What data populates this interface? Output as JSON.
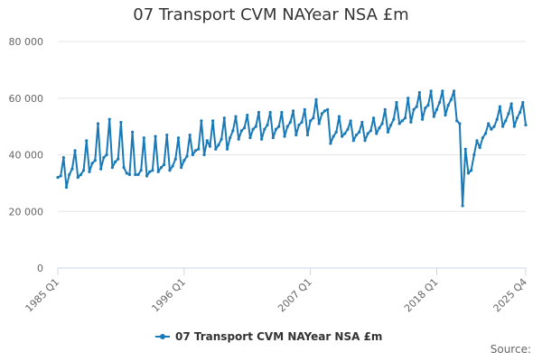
{
  "chart_data": {
    "type": "line",
    "title": "07 Transport CVM NAYear NSA £m",
    "source_label": "Source:",
    "legend_label": "07 Transport CVM NAYear NSA £m",
    "series_color": "#1a7ab8",
    "grid": true,
    "legend_position": "bottom-center",
    "ylim": [
      0,
      80000
    ],
    "yticks": [
      {
        "value": 0,
        "label": "0"
      },
      {
        "value": 20000,
        "label": "20 000"
      },
      {
        "value": 40000,
        "label": "40 000"
      },
      {
        "value": 60000,
        "label": "60 000"
      },
      {
        "value": 80000,
        "label": "80 000"
      }
    ],
    "xticks": [
      {
        "label": "1985 Q1",
        "year": 1985,
        "quarter": 1
      },
      {
        "label": "1996 Q1",
        "year": 1996,
        "quarter": 1
      },
      {
        "label": "2007 Q1",
        "year": 2007,
        "quarter": 1
      },
      {
        "label": "2018 Q1",
        "year": 2018,
        "quarter": 1
      },
      {
        "label": "2025 Q4",
        "year": 2025,
        "quarter": 4
      }
    ],
    "start": {
      "year": 1985,
      "quarter": 1
    },
    "values": [
      32000,
      32500,
      39000,
      28500,
      33000,
      35000,
      41500,
      32000,
      33000,
      34500,
      45000,
      34000,
      37000,
      38000,
      51000,
      35000,
      39000,
      40000,
      52500,
      35500,
      37500,
      38500,
      51500,
      35500,
      33500,
      33000,
      48000,
      33000,
      33000,
      34500,
      46000,
      32500,
      34000,
      34500,
      46500,
      34000,
      35500,
      36500,
      47000,
      34500,
      36000,
      38500,
      46000,
      35500,
      38000,
      39500,
      47000,
      40000,
      41500,
      42000,
      52000,
      40000,
      45000,
      43000,
      52000,
      42000,
      43500,
      45500,
      53000,
      42000,
      46000,
      48500,
      53500,
      45500,
      48500,
      49500,
      54000,
      46000,
      49000,
      50000,
      55000,
      45500,
      49000,
      50500,
      55000,
      46000,
      49000,
      50000,
      55000,
      46500,
      50000,
      51500,
      55500,
      47000,
      50500,
      51500,
      56000,
      47000,
      52000,
      53000,
      59500,
      51000,
      54500,
      55500,
      56000,
      44000,
      46500,
      48000,
      53500,
      46500,
      47500,
      49000,
      52000,
      45000,
      47000,
      48000,
      51500,
      45000,
      47500,
      48500,
      53000,
      47500,
      49500,
      51000,
      56000,
      48000,
      50500,
      52500,
      58500,
      51000,
      52000,
      53000,
      60000,
      51500,
      56000,
      57000,
      62000,
      52500,
      56500,
      57500,
      62500,
      53500,
      56000,
      58500,
      62500,
      54000,
      57500,
      59500,
      62500,
      52000,
      51000,
      22000,
      42000,
      33500,
      34500,
      40000,
      45000,
      42500,
      46000,
      47500,
      51000,
      49000,
      50000,
      52500,
      57000,
      50000,
      52000,
      54500,
      58000,
      50000,
      53000,
      55000,
      58500,
      50500
    ]
  }
}
